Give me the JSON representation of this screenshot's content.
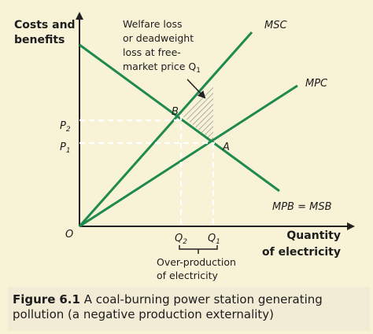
{
  "diagram": {
    "y_axis_title": [
      "Costs and",
      "benefits"
    ],
    "x_axis_title": [
      "Quantity",
      "of electricity"
    ],
    "origin_label": "O",
    "curves": {
      "msc": "MSC",
      "mpc": "MPC",
      "mpb_msb": "MPB = MSB"
    },
    "points": {
      "a": "A",
      "b": "B"
    },
    "price_labels": {
      "p2": "P",
      "p2_sub": "2",
      "p1": "P",
      "p1_sub": "1"
    },
    "quantity_labels": {
      "q2": "Q",
      "q2_sub": "2",
      "q1": "Q",
      "q1_sub": "1"
    },
    "welfare_note": [
      "Welfare loss",
      "or deadweight",
      "loss at free-",
      "market price Q",
      "1"
    ],
    "overproduction_note": [
      "Over-production",
      "of electricity"
    ]
  },
  "caption": {
    "prefix": "Figure",
    "number": "6.1",
    "line1": "A coal-burning power station generating",
    "line2": "pollution (a negative production externality)"
  },
  "colors": {
    "curve_green": "#1f8a4d",
    "background": "#f8f2d7",
    "caption_background": "#f2ebd5",
    "hatch": "#9a9a9a"
  }
}
